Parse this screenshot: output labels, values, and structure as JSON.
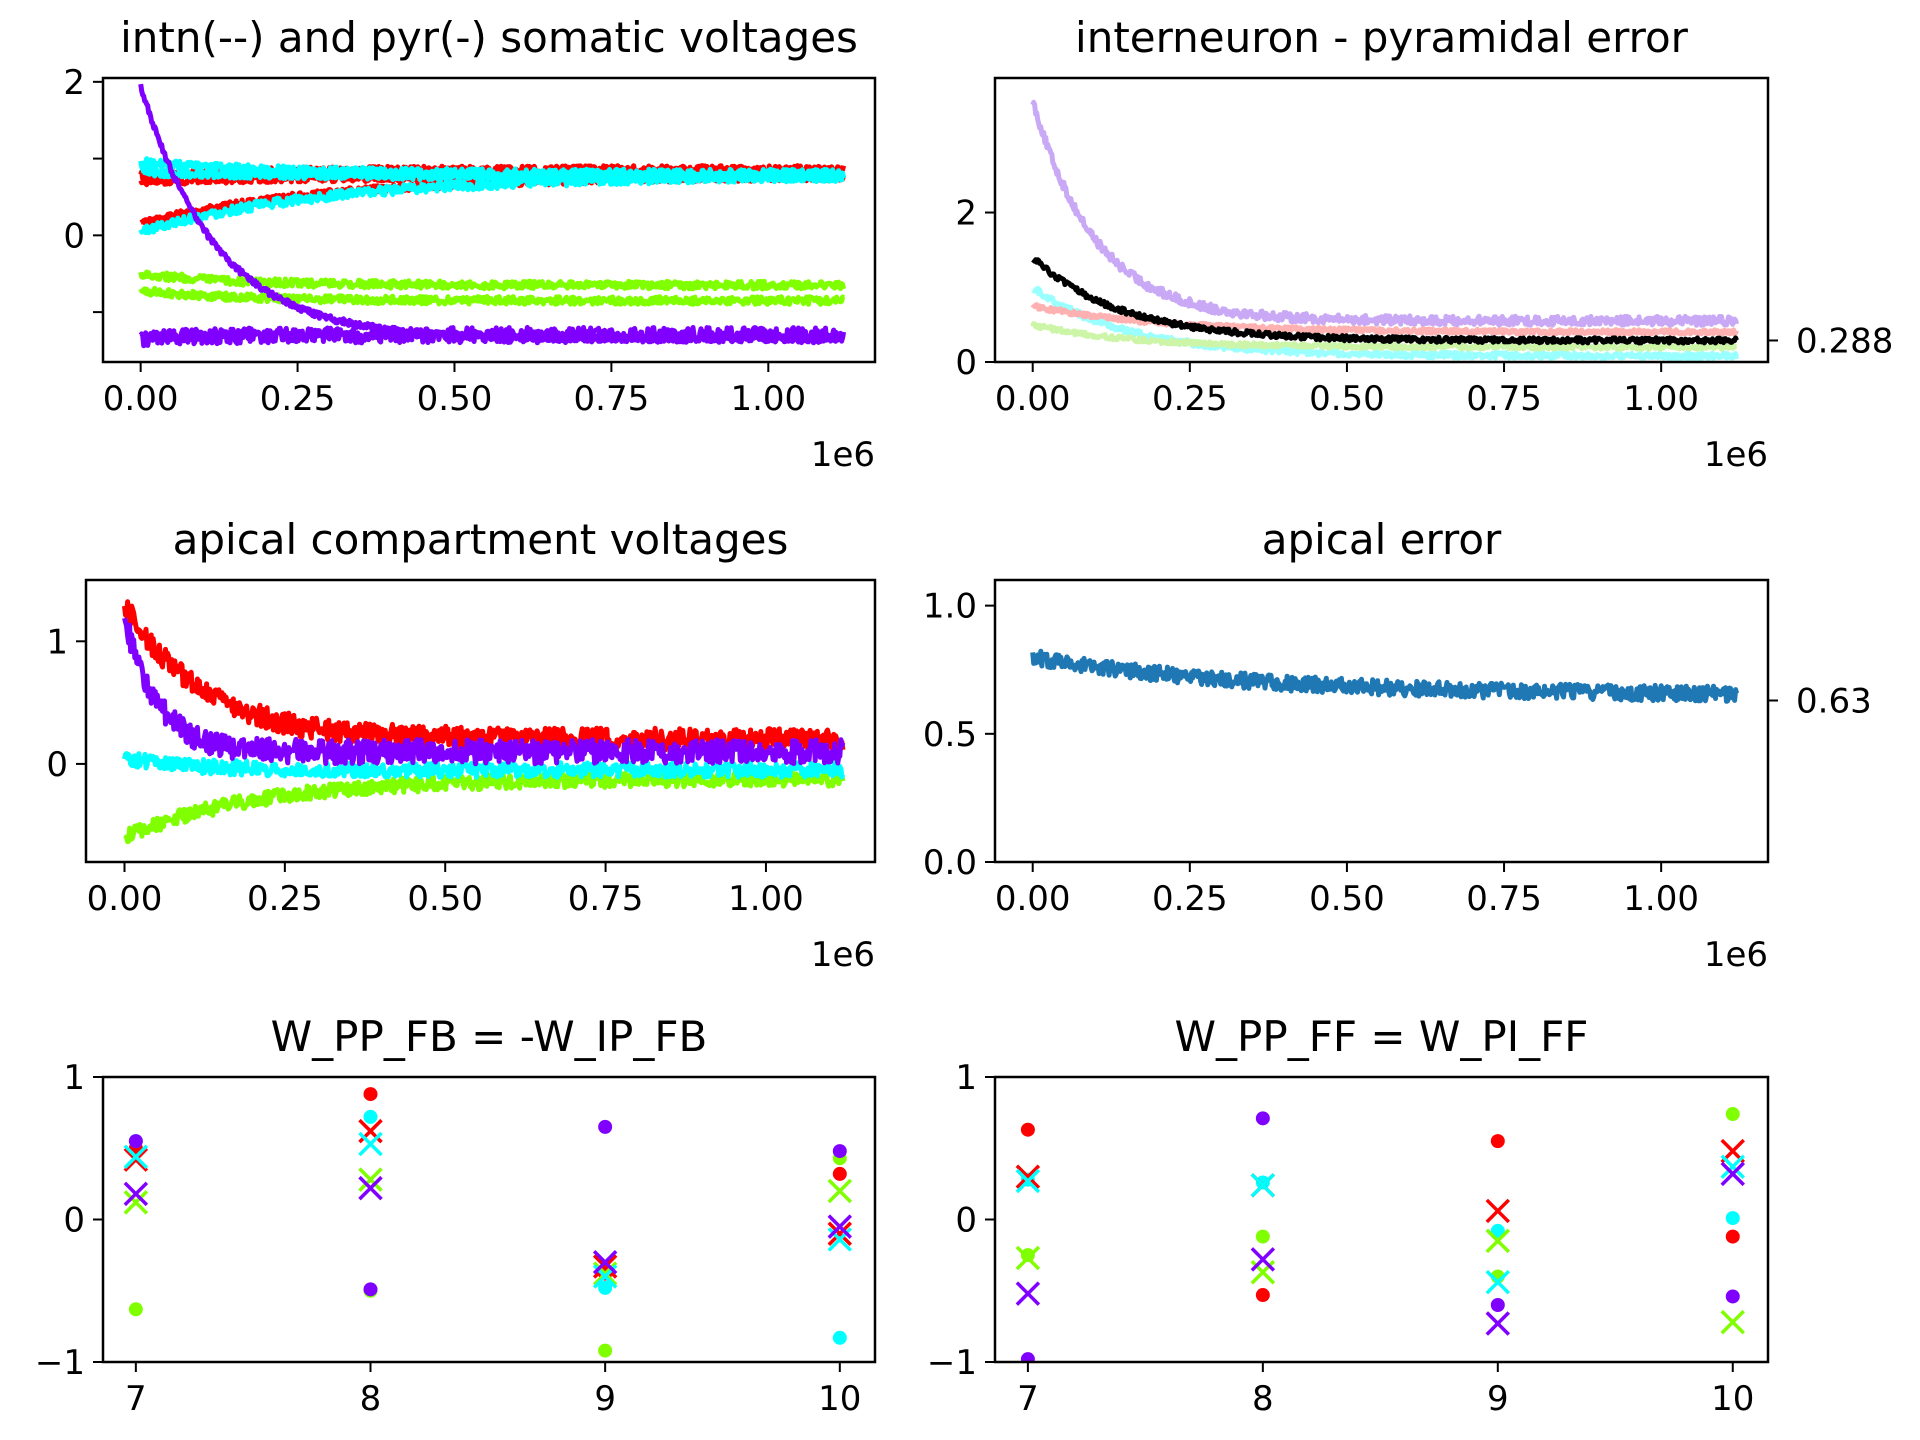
{
  "chart_data": [
    {
      "id": "p1",
      "type": "line",
      "title": "intn(--) and pyr(-) somatic voltages",
      "xlim": [
        -0.06,
        1.17
      ],
      "ylim": [
        -1.65,
        2.05
      ],
      "xticks": [
        0,
        0.25,
        0.5,
        0.75,
        1.0
      ],
      "xtick_labels": [
        "0.00",
        "0.25",
        "0.50",
        "0.75",
        "1.00"
      ],
      "yticks": [
        -1,
        0,
        1,
        2
      ],
      "ytick_labels": [
        "",
        "0",
        "",
        "2"
      ],
      "x_offset_text": "1e6",
      "series": [
        {
          "color": "#ff0000",
          "start": 0.78,
          "end": 0.86,
          "tau": 0.2,
          "noise": 0.05
        },
        {
          "color": "#ff0000",
          "start": 0.7,
          "end": 0.76,
          "tau": 0.2,
          "noise": 0.05
        },
        {
          "color": "#ff0000",
          "start": 0.15,
          "end": 0.78,
          "tau": 0.3,
          "noise": 0.05
        },
        {
          "color": "#00ffff",
          "start": 0.95,
          "end": 0.8,
          "tau": 0.2,
          "noise": 0.06
        },
        {
          "color": "#00ffff",
          "start": 0.05,
          "end": 0.78,
          "tau": 0.3,
          "noise": 0.06
        },
        {
          "color": "#00ffff",
          "start": 0.82,
          "end": 0.77,
          "tau": 0.2,
          "noise": 0.05
        },
        {
          "color": "#80ff00",
          "start": -0.5,
          "end": -0.65,
          "tau": 0.15,
          "noise": 0.05
        },
        {
          "color": "#80ff00",
          "start": -0.72,
          "end": -0.85,
          "tau": 0.15,
          "noise": 0.05
        },
        {
          "color": "#8000ff",
          "start": -1.35,
          "end": -1.3,
          "tau": 0.1,
          "noise": 0.1
        },
        {
          "color": "#8000ff",
          "start": 1.95,
          "end": -1.35,
          "tau": 0.12,
          "noise": 0.04
        }
      ]
    },
    {
      "id": "p2",
      "type": "line",
      "title": "interneuron - pyramidal error",
      "xlim": [
        -0.06,
        1.17
      ],
      "ylim": [
        0,
        3.8
      ],
      "xticks": [
        0,
        0.25,
        0.5,
        0.75,
        1.0
      ],
      "xtick_labels": [
        "0.00",
        "0.25",
        "0.50",
        "0.75",
        "1.00"
      ],
      "yticks": [
        0,
        2
      ],
      "ytick_labels": [
        "0",
        "2"
      ],
      "right_tick": 0.288,
      "right_tick_label": "0.288",
      "x_offset_text": "1e6",
      "series": [
        {
          "color": "#c9a8f5",
          "start": 3.5,
          "end": 0.55,
          "tau": 0.1,
          "noise": 0.06
        },
        {
          "color": "#99ffff",
          "start": 1.0,
          "end": 0.08,
          "tau": 0.15,
          "noise": 0.04
        },
        {
          "color": "#ffb0b0",
          "start": 0.75,
          "end": 0.4,
          "tau": 0.2,
          "noise": 0.03
        },
        {
          "color": "#ccf5a8",
          "start": 0.5,
          "end": 0.2,
          "tau": 0.15,
          "noise": 0.03
        },
        {
          "color": "#000000",
          "start": 1.4,
          "end": 0.288,
          "tau": 0.14,
          "noise": 0.035
        }
      ]
    },
    {
      "id": "p3",
      "type": "line",
      "title": "apical compartment voltages",
      "xlim": [
        -0.06,
        1.17
      ],
      "ylim": [
        -0.8,
        1.5
      ],
      "xticks": [
        0,
        0.25,
        0.5,
        0.75,
        1.0
      ],
      "xtick_labels": [
        "0.00",
        "0.25",
        "0.50",
        "0.75",
        "1.00"
      ],
      "yticks": [
        0,
        1
      ],
      "ytick_labels": [
        "0",
        "1"
      ],
      "x_offset_text": "1e6",
      "series": [
        {
          "color": "#80ff00",
          "start": -0.6,
          "end": -0.12,
          "tau": 0.2,
          "noise": 0.06
        },
        {
          "color": "#00ffff",
          "start": 0.05,
          "end": -0.05,
          "tau": 0.1,
          "noise": 0.06
        },
        {
          "color": "#ff0000",
          "start": 1.3,
          "end": 0.2,
          "tau": 0.12,
          "noise": 0.09
        },
        {
          "color": "#8000ff",
          "start": 1.2,
          "end": 0.1,
          "tau": 0.05,
          "noise": 0.1
        }
      ]
    },
    {
      "id": "p4",
      "type": "line",
      "title": "apical error",
      "xlim": [
        -0.06,
        1.17
      ],
      "ylim": [
        0,
        1.1
      ],
      "xticks": [
        0,
        0.25,
        0.5,
        0.75,
        1.0
      ],
      "xtick_labels": [
        "0.00",
        "0.25",
        "0.50",
        "0.75",
        "1.00"
      ],
      "yticks": [
        0,
        0.5,
        1.0
      ],
      "ytick_labels": [
        "0.0",
        "0.5",
        "1.0"
      ],
      "right_tick": 0.63,
      "right_tick_label": "0.63",
      "x_offset_text": "1e6",
      "series": [
        {
          "color": "#1f77b4",
          "start": 0.8,
          "end": 0.65,
          "tau": 0.35,
          "noise": 0.03
        }
      ]
    },
    {
      "id": "p5",
      "type": "scatter",
      "title": "W_PP_FB = -W_IP_FB",
      "xlim": [
        6.86,
        10.15
      ],
      "ylim": [
        -1,
        1
      ],
      "xticks": [
        7,
        8,
        9,
        10
      ],
      "xtick_labels": [
        "7",
        "8",
        "9",
        "10"
      ],
      "yticks": [
        -1,
        0,
        1
      ],
      "ytick_labels": [
        "−1",
        "0",
        "1"
      ],
      "dots": [
        {
          "x": 7,
          "y": 0.5,
          "color": "#ff0000"
        },
        {
          "x": 7,
          "y": -0.63,
          "color": "#80ff00"
        },
        {
          "x": 7,
          "y": 0.55,
          "color": "#00ffff"
        },
        {
          "x": 7,
          "y": 0.55,
          "color": "#8000ff"
        },
        {
          "x": 8,
          "y": 0.88,
          "color": "#ff0000"
        },
        {
          "x": 8,
          "y": -0.5,
          "color": "#80ff00"
        },
        {
          "x": 8,
          "y": 0.72,
          "color": "#00ffff"
        },
        {
          "x": 8,
          "y": -0.49,
          "color": "#8000ff"
        },
        {
          "x": 9,
          "y": -0.38,
          "color": "#ff0000"
        },
        {
          "x": 9,
          "y": -0.92,
          "color": "#80ff00"
        },
        {
          "x": 9,
          "y": -0.48,
          "color": "#00ffff"
        },
        {
          "x": 9,
          "y": 0.65,
          "color": "#8000ff"
        },
        {
          "x": 10,
          "y": 0.32,
          "color": "#ff0000"
        },
        {
          "x": 10,
          "y": 0.43,
          "color": "#80ff00"
        },
        {
          "x": 10,
          "y": -0.83,
          "color": "#00ffff"
        },
        {
          "x": 10,
          "y": 0.48,
          "color": "#8000ff"
        }
      ],
      "crosses": [
        {
          "x": 7,
          "y": 0.42,
          "color": "#ff0000"
        },
        {
          "x": 7,
          "y": 0.12,
          "color": "#80ff00"
        },
        {
          "x": 7,
          "y": 0.44,
          "color": "#00ffff"
        },
        {
          "x": 7,
          "y": 0.18,
          "color": "#8000ff"
        },
        {
          "x": 8,
          "y": 0.62,
          "color": "#ff0000"
        },
        {
          "x": 8,
          "y": 0.28,
          "color": "#80ff00"
        },
        {
          "x": 8,
          "y": 0.53,
          "color": "#00ffff"
        },
        {
          "x": 8,
          "y": 0.22,
          "color": "#8000ff"
        },
        {
          "x": 9,
          "y": -0.33,
          "color": "#ff0000"
        },
        {
          "x": 9,
          "y": -0.38,
          "color": "#80ff00"
        },
        {
          "x": 9,
          "y": -0.4,
          "color": "#00ffff"
        },
        {
          "x": 9,
          "y": -0.3,
          "color": "#8000ff"
        },
        {
          "x": 10,
          "y": -0.1,
          "color": "#ff0000"
        },
        {
          "x": 10,
          "y": 0.2,
          "color": "#80ff00"
        },
        {
          "x": 10,
          "y": -0.14,
          "color": "#00ffff"
        },
        {
          "x": 10,
          "y": -0.05,
          "color": "#8000ff"
        }
      ]
    },
    {
      "id": "p6",
      "type": "scatter",
      "title": "W_PP_FF = W_PI_FF",
      "xlim": [
        6.86,
        10.15
      ],
      "ylim": [
        -1,
        1
      ],
      "xticks": [
        7,
        8,
        9,
        10
      ],
      "xtick_labels": [
        "7",
        "8",
        "9",
        "10"
      ],
      "yticks": [
        -1,
        0,
        1
      ],
      "ytick_labels": [
        "−1",
        "0",
        "1"
      ],
      "dots": [
        {
          "x": 7,
          "y": 0.63,
          "color": "#ff0000"
        },
        {
          "x": 7,
          "y": -0.25,
          "color": "#80ff00"
        },
        {
          "x": 7,
          "y": 0.28,
          "color": "#00ffff"
        },
        {
          "x": 7,
          "y": -0.98,
          "color": "#8000ff"
        },
        {
          "x": 8,
          "y": -0.53,
          "color": "#ff0000"
        },
        {
          "x": 8,
          "y": -0.12,
          "color": "#80ff00"
        },
        {
          "x": 8,
          "y": 0.26,
          "color": "#00ffff"
        },
        {
          "x": 8,
          "y": 0.71,
          "color": "#8000ff"
        },
        {
          "x": 9,
          "y": 0.55,
          "color": "#ff0000"
        },
        {
          "x": 9,
          "y": -0.4,
          "color": "#80ff00"
        },
        {
          "x": 9,
          "y": -0.08,
          "color": "#00ffff"
        },
        {
          "x": 9,
          "y": -0.6,
          "color": "#8000ff"
        },
        {
          "x": 10,
          "y": -0.12,
          "color": "#ff0000"
        },
        {
          "x": 10,
          "y": 0.74,
          "color": "#80ff00"
        },
        {
          "x": 10,
          "y": 0.01,
          "color": "#00ffff"
        },
        {
          "x": 10,
          "y": -0.54,
          "color": "#8000ff"
        }
      ],
      "crosses": [
        {
          "x": 7,
          "y": 0.3,
          "color": "#ff0000"
        },
        {
          "x": 7,
          "y": -0.27,
          "color": "#80ff00"
        },
        {
          "x": 7,
          "y": 0.27,
          "color": "#00ffff"
        },
        {
          "x": 7,
          "y": -0.52,
          "color": "#8000ff"
        },
        {
          "x": 8,
          "y": 0.24,
          "color": "#ff0000"
        },
        {
          "x": 8,
          "y": -0.37,
          "color": "#80ff00"
        },
        {
          "x": 8,
          "y": 0.24,
          "color": "#00ffff"
        },
        {
          "x": 8,
          "y": -0.28,
          "color": "#8000ff"
        },
        {
          "x": 9,
          "y": 0.06,
          "color": "#ff0000"
        },
        {
          "x": 9,
          "y": -0.15,
          "color": "#80ff00"
        },
        {
          "x": 9,
          "y": -0.44,
          "color": "#00ffff"
        },
        {
          "x": 9,
          "y": -0.73,
          "color": "#8000ff"
        },
        {
          "x": 10,
          "y": 0.48,
          "color": "#ff0000"
        },
        {
          "x": 10,
          "y": -0.72,
          "color": "#80ff00"
        },
        {
          "x": 10,
          "y": 0.37,
          "color": "#00ffff"
        },
        {
          "x": 10,
          "y": 0.32,
          "color": "#8000ff"
        }
      ]
    }
  ]
}
